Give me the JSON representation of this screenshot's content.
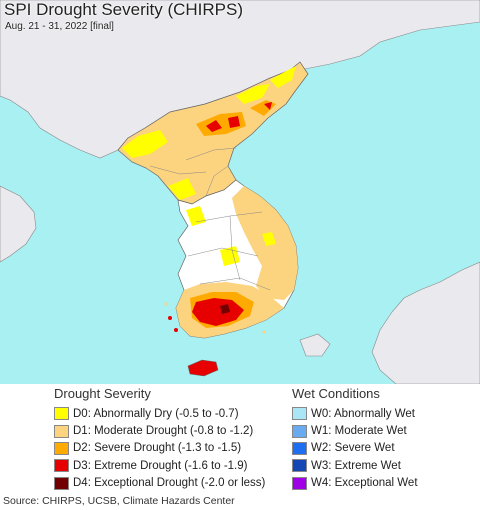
{
  "map": {
    "title": "SPI Drought Severity (CHIRPS)",
    "subtitle": "Aug. 21 - 31, 2022 [final]",
    "colors": {
      "sea": "#a9f0f3",
      "land_outside": "#e9e9ee",
      "no_drought": "#ffffff",
      "D0": "#ffff00",
      "D1": "#fcd37f",
      "D2": "#ffaa00",
      "D3": "#e60000",
      "D4": "#730000",
      "border": "#666666"
    }
  },
  "legend_drought": {
    "title": "Drought Severity",
    "items": [
      {
        "label": "D0: Abnormally Dry (-0.5 to -0.7)",
        "color": "#ffff00"
      },
      {
        "label": "D1: Moderate Drought (-0.8 to -1.2)",
        "color": "#fcd37f"
      },
      {
        "label": "D2: Severe Drought (-1.3 to -1.5)",
        "color": "#ffaa00"
      },
      {
        "label": "D3: Extreme Drought (-1.6 to -1.9)",
        "color": "#e60000"
      },
      {
        "label": "D4: Exceptional Drought (-2.0 or less)",
        "color": "#730000"
      }
    ]
  },
  "legend_wet": {
    "title": "Wet Conditions",
    "items": [
      {
        "label": "W0: Abnormally Wet",
        "color": "#aae6f5"
      },
      {
        "label": "W1: Moderate Wet",
        "color": "#6aaaf0"
      },
      {
        "label": "W2: Severe Wet",
        "color": "#1e6ef0"
      },
      {
        "label": "W3: Extreme Wet",
        "color": "#1446b4"
      },
      {
        "label": "W4: Exceptional Wet",
        "color": "#a000e6"
      }
    ]
  },
  "footer": {
    "source": "Source: CHIRPS, UCSB, Climate Hazards Center"
  }
}
